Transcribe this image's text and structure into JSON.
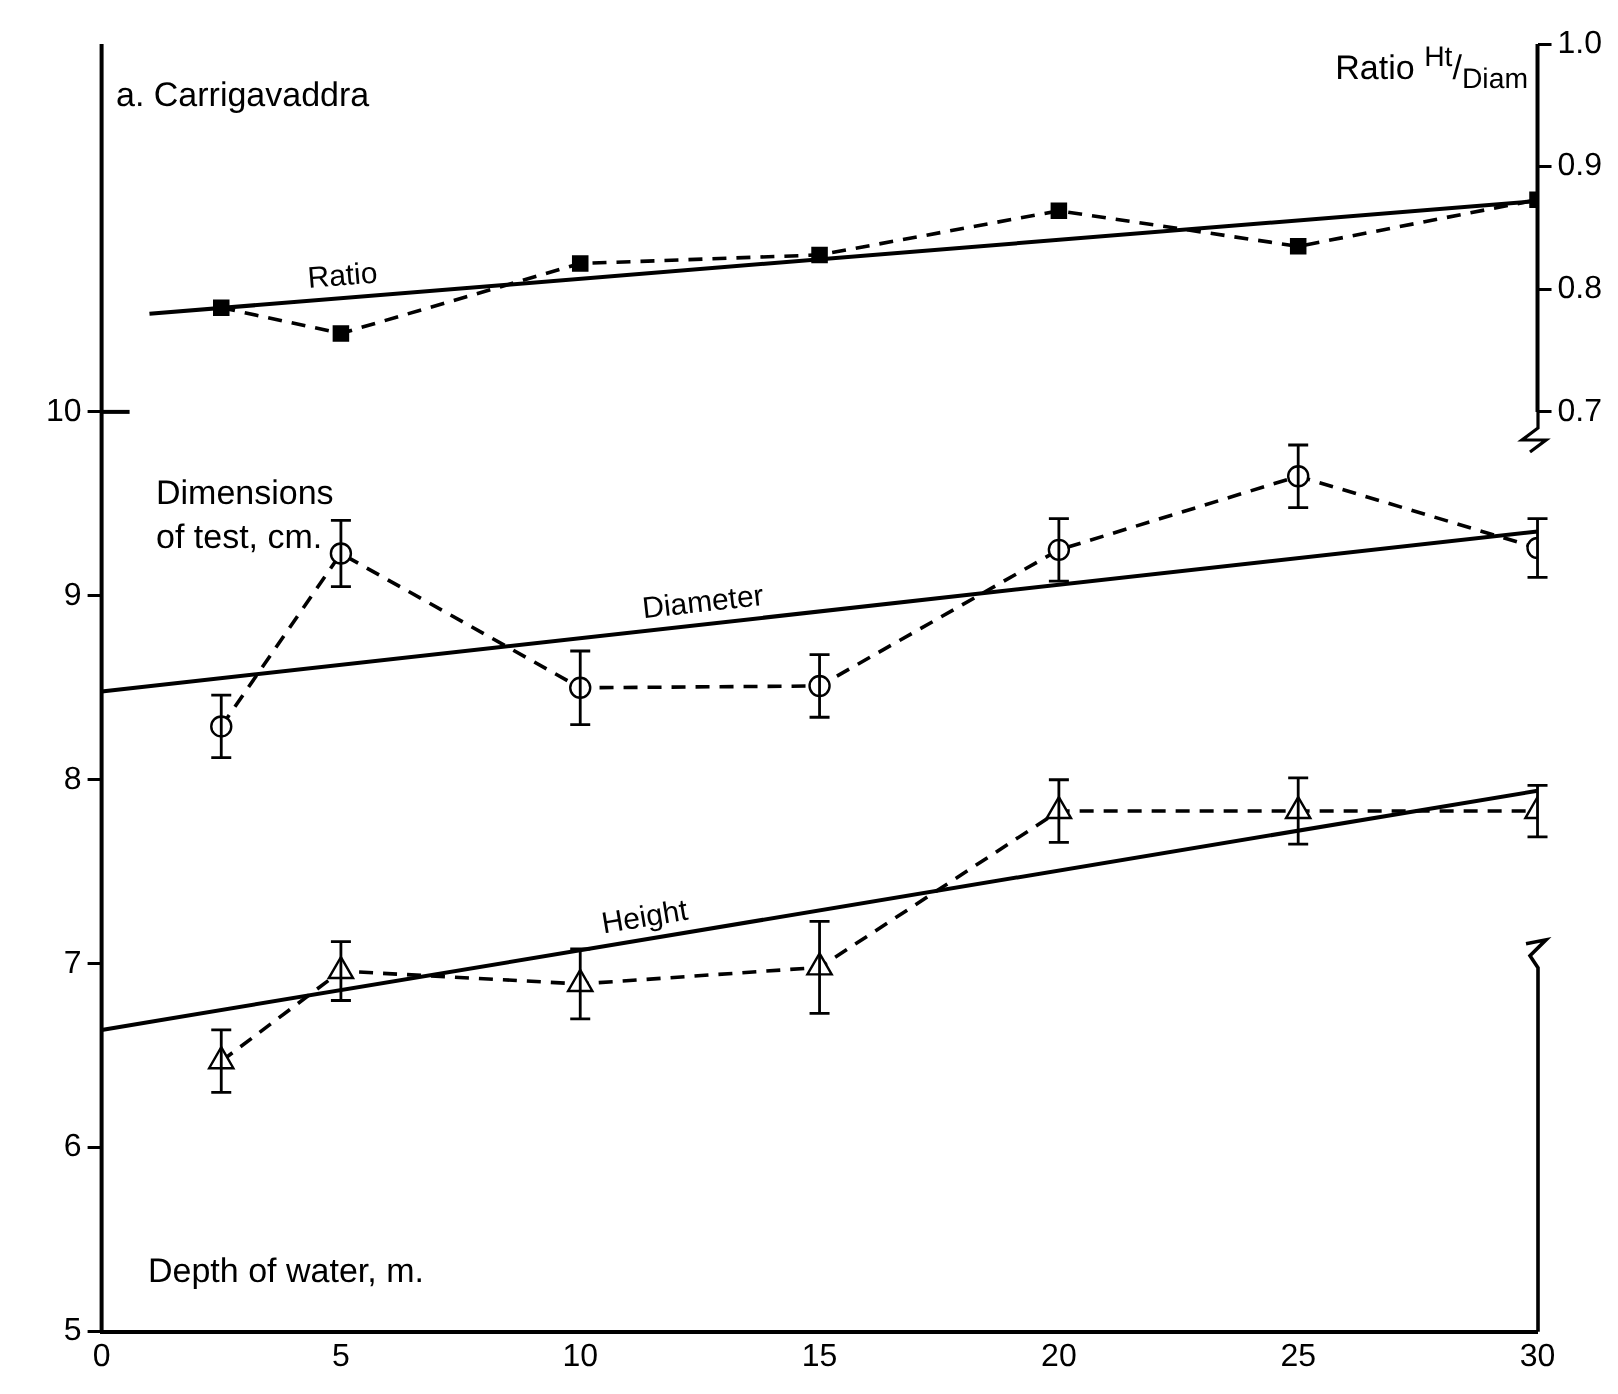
{
  "chart_data": {
    "type": "line",
    "title": "a. Carrigavaddra",
    "xlabel": "Depth of water, m.",
    "ylabel": "Dimensions of test, cm.",
    "y2label": "Ratio $^{Ht}$/$_{Diam}$",
    "xlim": [
      0,
      30
    ],
    "xticks": [
      0,
      5,
      10,
      15,
      20,
      25,
      30
    ],
    "ylim": [
      5,
      12
    ],
    "yticks": [
      5,
      6,
      7,
      8,
      9,
      10
    ],
    "y2lim": [
      -0.05,
      1.0
    ],
    "y2ticks": [
      0.7,
      0.8,
      0.9,
      {
        "value": 1.0,
        "label": "1.0"
      }
    ],
    "grid": false,
    "legend": false,
    "series": [
      {
        "axis": "y2",
        "color": "#000000",
        "marker": "square",
        "line_style": "dashed",
        "x": [
          2.5,
          5,
          10,
          15,
          20,
          25,
          30
        ],
        "values": [
          0.785,
          0.764,
          0.821,
          0.828,
          0.864,
          0.835,
          0.873
        ]
      },
      {
        "axis": "y2",
        "name": "Ratio",
        "color": "#000000",
        "marker": "none",
        "line_style": "solid",
        "x": [
          1,
          30
        ],
        "values": [
          0.78,
          0.872
        ]
      },
      {
        "color": "#000000",
        "marker": "circle",
        "line_style": "dashed",
        "x": [
          2.5,
          5,
          10,
          15,
          20,
          25,
          30
        ],
        "values": [
          8.29,
          9.23,
          8.5,
          8.51,
          9.25,
          9.65,
          9.26
        ],
        "errors": [
          0.17,
          0.18,
          0.2,
          0.17,
          0.17,
          0.17,
          0.16
        ]
      },
      {
        "name": "Diameter",
        "color": "#000000",
        "marker": "none",
        "line_style": "solid",
        "x": [
          0,
          30
        ],
        "values": [
          8.48,
          9.35
        ]
      },
      {
        "color": "#000000",
        "marker": "triangle",
        "line_style": "dashed",
        "x": [
          2.5,
          5,
          10,
          15,
          20,
          25,
          30
        ],
        "values": [
          6.47,
          6.96,
          6.89,
          6.98,
          7.83,
          7.83,
          7.83
        ],
        "errors": [
          0.17,
          0.16,
          0.19,
          0.25,
          0.17,
          0.18,
          0.14
        ]
      },
      {
        "name": "Height",
        "color": "#000000",
        "marker": "none",
        "line_style": "solid",
        "x": [
          0,
          30
        ],
        "values": [
          6.64,
          7.94
        ]
      }
    ]
  }
}
